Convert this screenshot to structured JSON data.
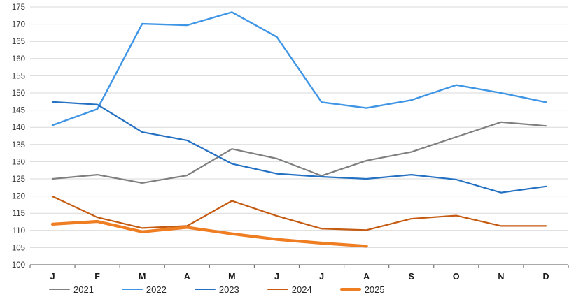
{
  "chart_data": {
    "type": "line",
    "title": "",
    "xlabel": "",
    "ylabel": "",
    "categories": [
      "J",
      "F",
      "M",
      "A",
      "M",
      "J",
      "J",
      "A",
      "S",
      "O",
      "N",
      "D"
    ],
    "y_ticks": [
      100,
      105,
      110,
      115,
      120,
      125,
      130,
      135,
      140,
      145,
      150,
      155,
      160,
      165,
      170,
      175
    ],
    "ylim": [
      100,
      175
    ],
    "grid": "horizontal",
    "legend_position": "bottom",
    "colors": {
      "gridline": "#d9d9d9",
      "axis": "#737373",
      "tick_label": "#333333",
      "month_label": "#1a1a1a"
    },
    "series": [
      {
        "name": "2021",
        "color": "#7f7f7f",
        "stroke_width": 2.2,
        "values": [
          125.0,
          126.2,
          123.8,
          126.0,
          133.7,
          130.9,
          125.9,
          130.3,
          132.8,
          137.2,
          141.5,
          140.4
        ]
      },
      {
        "name": "2022",
        "color": "#3e95e5",
        "stroke_width": 2.4,
        "values": [
          140.6,
          145.3,
          170.1,
          169.7,
          173.5,
          166.3,
          147.3,
          145.6,
          147.9,
          152.3,
          150.0,
          147.3
        ]
      },
      {
        "name": "2023",
        "color": "#2470c2",
        "stroke_width": 2.2,
        "values": [
          147.4,
          146.6,
          138.6,
          136.2,
          129.4,
          126.5,
          125.6,
          125.0,
          126.2,
          124.8,
          121.0,
          122.8
        ]
      },
      {
        "name": "2024",
        "color": "#c55a11",
        "stroke_width": 2.2,
        "values": [
          119.9,
          113.8,
          110.7,
          111.3,
          118.6,
          114.2,
          110.5,
          110.1,
          113.4,
          114.3,
          111.3,
          111.3
        ]
      },
      {
        "name": "2025",
        "color": "#ef7d22",
        "stroke_width": 4.2,
        "values": [
          111.8,
          112.6,
          109.6,
          110.9,
          109.0,
          107.4,
          106.3,
          105.4
        ]
      }
    ]
  }
}
